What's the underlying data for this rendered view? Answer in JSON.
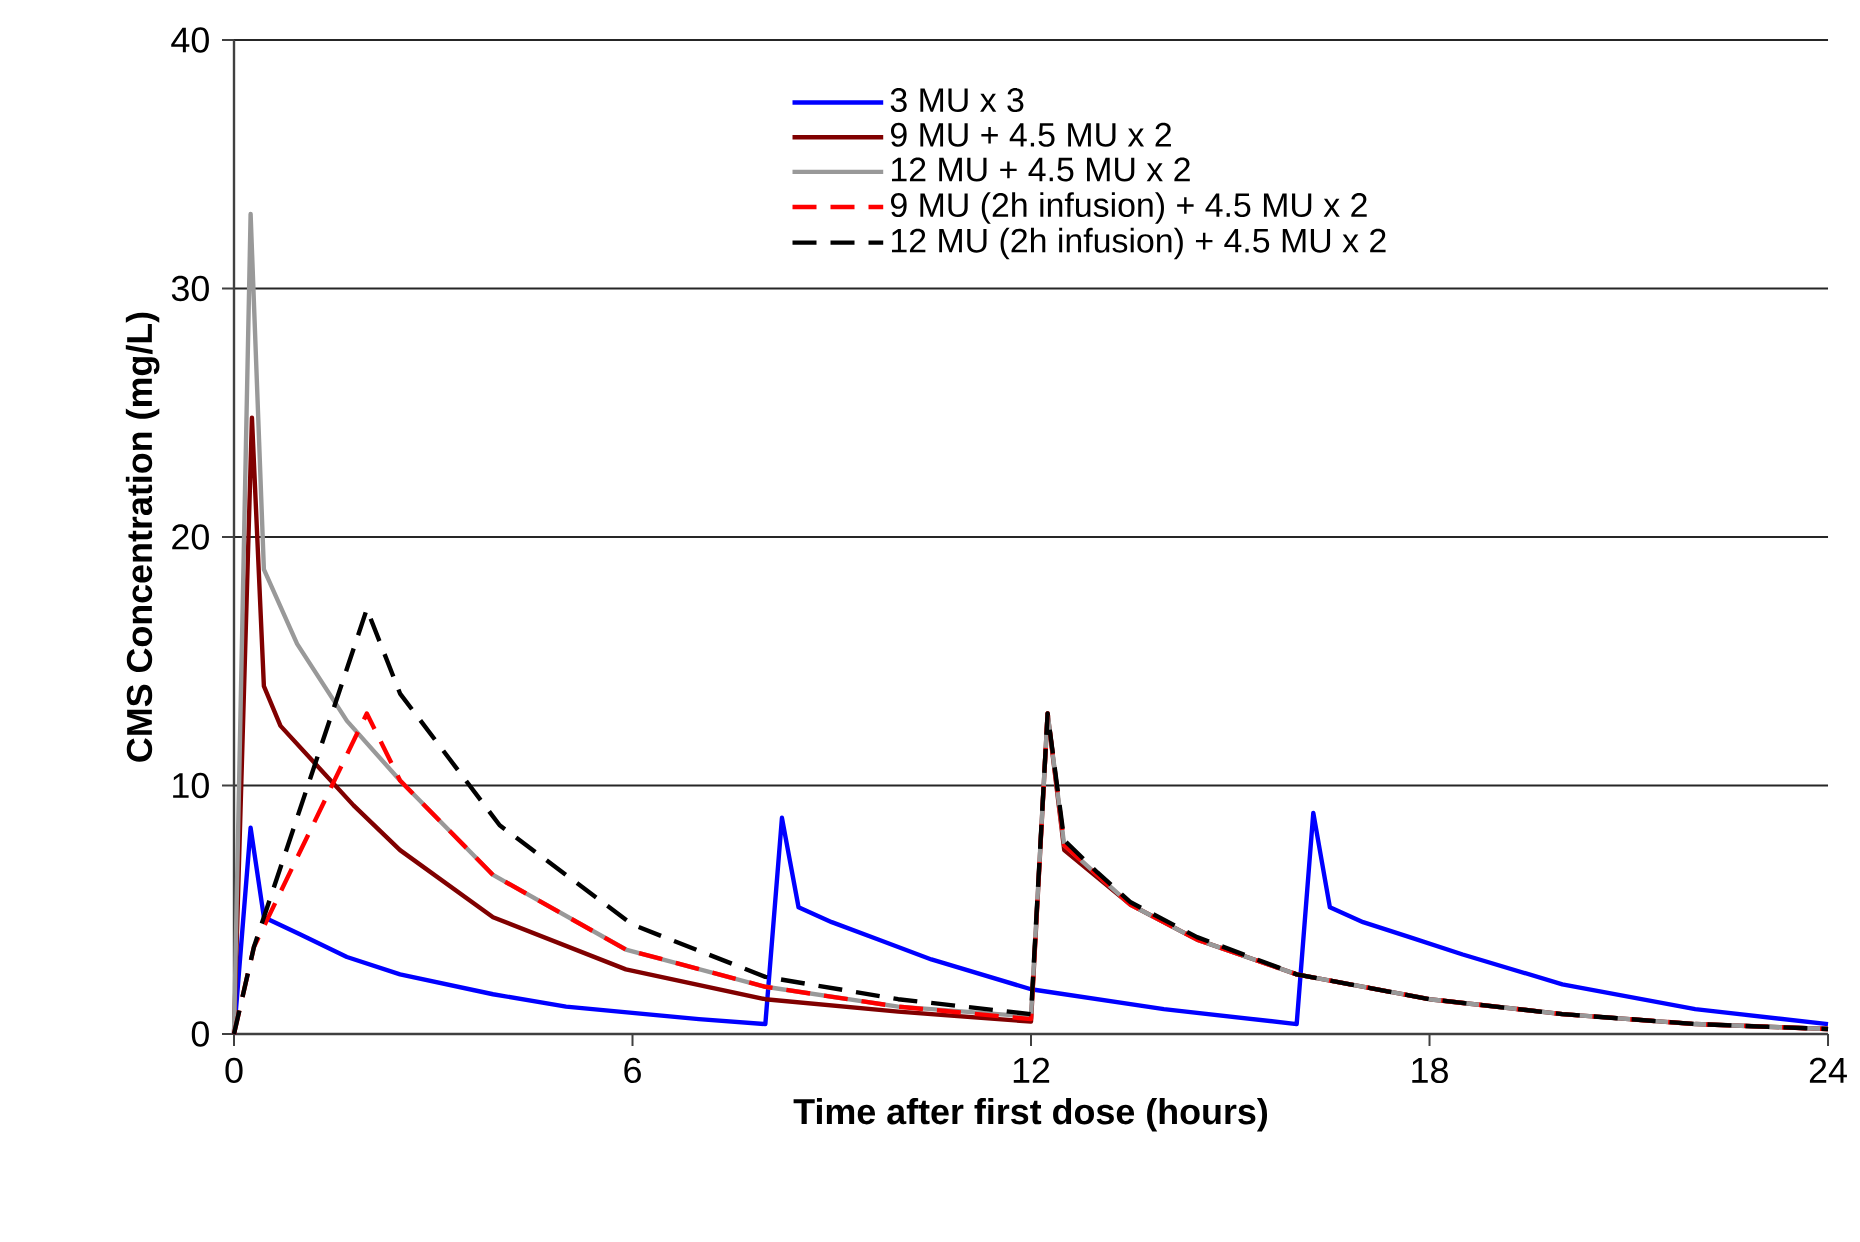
{
  "chart_data": {
    "type": "line",
    "xlabel": "Time after first dose (hours)",
    "ylabel": "CMS Concentration (mg/L)",
    "xlim": [
      0,
      24
    ],
    "ylim": [
      0,
      40
    ],
    "xticks": [
      0,
      6,
      12,
      18,
      24
    ],
    "yticks": [
      0,
      10,
      20,
      30,
      40
    ],
    "grid": "y",
    "legend": "top right",
    "series": [
      {
        "name": "3 MU x 3",
        "color": "#0000ff",
        "line_style": "solid",
        "x": [
          0,
          0.25,
          0.45,
          1.0,
          1.7,
          2.5,
          3.9,
          5.0,
          7.0,
          8.0,
          8.25,
          8.5,
          9.0,
          9.7,
          10.5,
          12.0,
          14.0,
          16.0,
          16.25,
          16.5,
          17.0,
          17.7,
          18.5,
          20.0,
          22.0,
          24.0
        ],
        "values": [
          0,
          8.3,
          4.7,
          4.0,
          3.1,
          2.4,
          1.6,
          1.1,
          0.6,
          0.4,
          8.7,
          5.1,
          4.5,
          3.8,
          3.0,
          1.8,
          1.0,
          0.4,
          8.9,
          5.1,
          4.5,
          3.9,
          3.2,
          2.0,
          1.0,
          0.4
        ]
      },
      {
        "name": "9 MU + 4.5 MU x 2",
        "color": "#800000",
        "line_style": "solid",
        "x": [
          0,
          0.27,
          0.45,
          0.7,
          1.8,
          2.5,
          3.9,
          5.9,
          8.0,
          10.0,
          12.0,
          12.25,
          12.5,
          13.0,
          13.5,
          14.5,
          16.0,
          18.0,
          20.0,
          22.0,
          24.0
        ],
        "values": [
          0,
          24.8,
          14.0,
          12.4,
          9.2,
          7.4,
          4.7,
          2.6,
          1.4,
          0.9,
          0.5,
          12.9,
          7.4,
          6.3,
          5.2,
          3.8,
          2.4,
          1.4,
          0.8,
          0.4,
          0.2
        ]
      },
      {
        "name": "12 MU + 4.5 MU x 2",
        "color": "#999999",
        "line_style": "solid",
        "x": [
          0,
          0.25,
          0.45,
          0.95,
          1.7,
          2.5,
          3.9,
          5.9,
          8.0,
          10.0,
          12.0,
          12.25,
          12.5,
          13.0,
          13.5,
          14.5,
          16.0,
          18.0,
          20.0,
          22.0,
          24.0
        ],
        "values": [
          0,
          33.0,
          18.7,
          15.7,
          12.6,
          10.2,
          6.4,
          3.4,
          1.9,
          1.1,
          0.7,
          12.9,
          7.6,
          6.4,
          5.2,
          3.8,
          2.4,
          1.4,
          0.8,
          0.4,
          0.2
        ]
      },
      {
        "name": "9 MU (2h infusion) + 4.5 MU x 2",
        "color": "#ff0000",
        "line_style": "dashed",
        "x": [
          0,
          0.3,
          2.0,
          2.5,
          3.9,
          5.9,
          8.0,
          10.0,
          12.0,
          12.25,
          12.5,
          13.0,
          13.5,
          14.5,
          16.0,
          18.0,
          20.0,
          22.0,
          24.0
        ],
        "values": [
          0,
          3.5,
          12.9,
          10.2,
          6.4,
          3.4,
          1.9,
          1.1,
          0.6,
          12.9,
          7.6,
          6.4,
          5.2,
          3.8,
          2.4,
          1.4,
          0.8,
          0.4,
          0.2
        ]
      },
      {
        "name": "12 MU (2h infusion) + 4.5 MU x 2",
        "color": "#000000",
        "line_style": "dashed",
        "x": [
          0,
          0.3,
          2.0,
          2.5,
          4.0,
          6.0,
          8.0,
          10.0,
          12.0,
          12.25,
          12.5,
          13.0,
          13.5,
          14.5,
          16.0,
          18.0,
          20.0,
          22.0,
          24.0
        ],
        "values": [
          0,
          3.5,
          17.1,
          13.7,
          8.4,
          4.4,
          2.3,
          1.4,
          0.8,
          12.9,
          7.8,
          6.5,
          5.3,
          3.9,
          2.4,
          1.4,
          0.8,
          0.4,
          0.2
        ]
      }
    ]
  }
}
